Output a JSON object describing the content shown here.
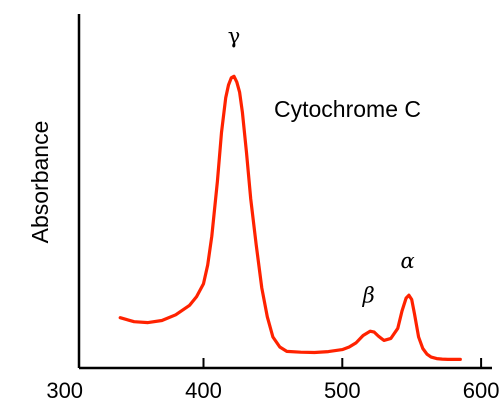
{
  "chart_data": {
    "type": "line",
    "title": "Cytochrome C",
    "xlabel": "",
    "ylabel": "Absorbance",
    "xlim": [
      300,
      600
    ],
    "ylim": [
      0,
      1
    ],
    "x_ticks": [
      300,
      400,
      500,
      600
    ],
    "y_ticks": [],
    "grid": false,
    "series": [
      {
        "color": "#ff2200",
        "x": [
          340,
          350,
          360,
          370,
          380,
          390,
          395,
          400,
          403,
          406,
          410,
          413,
          416,
          418,
          420,
          422,
          424,
          426,
          428,
          431,
          434,
          438,
          442,
          446,
          450,
          455,
          460,
          470,
          480,
          490,
          500,
          505,
          510,
          515,
          520,
          523,
          526,
          530,
          535,
          540,
          543,
          546,
          548,
          550,
          552,
          555,
          558,
          561,
          564,
          568,
          572,
          576,
          580,
          585
        ],
        "values": [
          0.147,
          0.133,
          0.13,
          0.137,
          0.157,
          0.19,
          0.22,
          0.265,
          0.33,
          0.43,
          0.62,
          0.79,
          0.91,
          0.955,
          0.98,
          0.985,
          0.965,
          0.93,
          0.86,
          0.72,
          0.56,
          0.4,
          0.25,
          0.15,
          0.08,
          0.045,
          0.03,
          0.027,
          0.026,
          0.029,
          0.036,
          0.045,
          0.06,
          0.085,
          0.1,
          0.097,
          0.083,
          0.068,
          0.075,
          0.11,
          0.17,
          0.215,
          0.225,
          0.21,
          0.16,
          0.08,
          0.04,
          0.02,
          0.01,
          0.005,
          0.003,
          0.002,
          0.002,
          0.002
        ]
      }
    ],
    "annotations": [
      {
        "text": "γ",
        "x": 422,
        "y": 1.1,
        "italic": false
      },
      {
        "text": "β",
        "x": 519,
        "y": 0.2,
        "italic": true
      },
      {
        "text": "α",
        "x": 547,
        "y": 0.32,
        "italic": true
      }
    ]
  }
}
